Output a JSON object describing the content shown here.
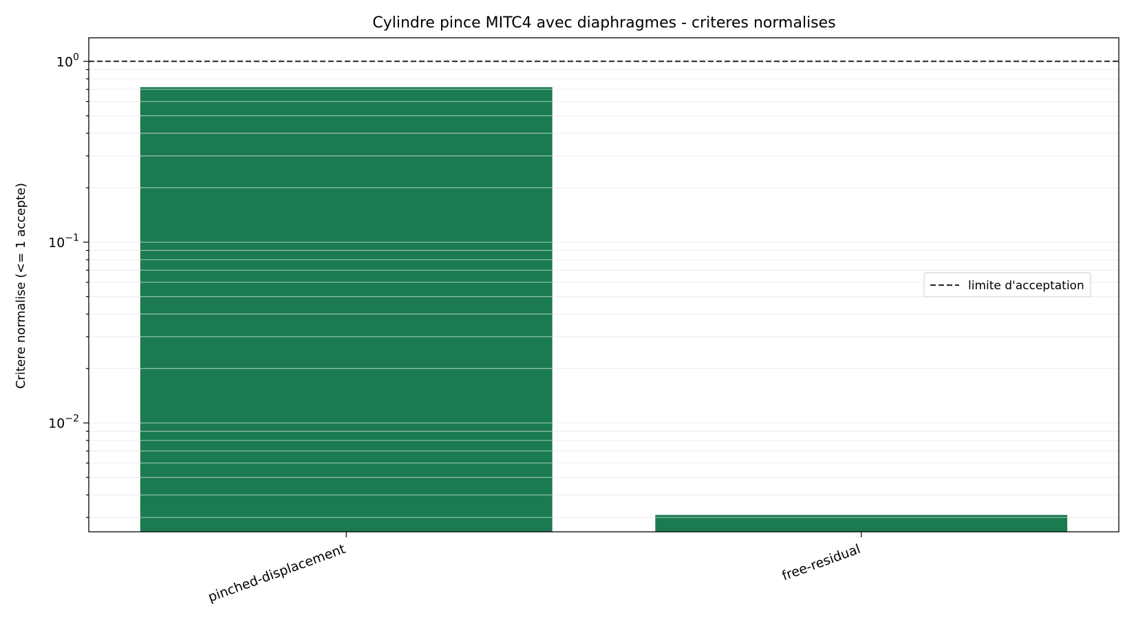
{
  "chart_data": {
    "type": "bar",
    "title": "Cylindre pince MITC4 avec diaphragmes - criteres normalises",
    "xlabel": "",
    "ylabel": "Critere normalise (<= 1 accepte)",
    "yscale": "log",
    "ylim": [
      0.0025,
      1.35
    ],
    "yticks": [
      {
        "base": "10",
        "exp": "0",
        "value": 1
      },
      {
        "base": "10",
        "exp": "−1",
        "value": 0.1
      },
      {
        "base": "10",
        "exp": "−2",
        "value": 0.01
      }
    ],
    "grid": true,
    "categories": [
      "pinched-displacement",
      "free-residual"
    ],
    "values": [
      0.72,
      0.0031
    ],
    "bar_color": "#1b7a50",
    "reference_line": {
      "value": 1.0,
      "label": "limite d'acceptation",
      "color": "#222222",
      "style": "dashed"
    },
    "legend": {
      "position": "center-right",
      "entries": [
        "limite d'acceptation"
      ]
    }
  }
}
